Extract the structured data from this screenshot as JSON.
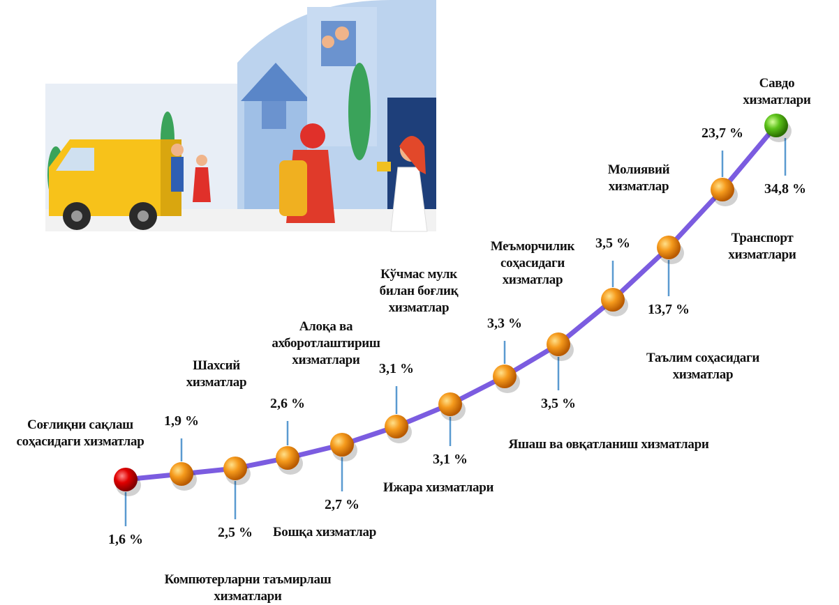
{
  "points": [
    {
      "name": "Соғлиқни сақлаш\nсоҳасидаги хизматлар",
      "value": "1,6 %"
    },
    {
      "name": "Шахсий\nхизматлар",
      "value": "1,9 %"
    },
    {
      "name": "Компютерларни таъмирлаш\nхизматлари",
      "value": "2,5 %"
    },
    {
      "name": "Алоқа ва\nахборотлаштириш\nхизматлари",
      "value": "2,6 %"
    },
    {
      "name": "Бошқа хизматлар",
      "value": "2,7 %"
    },
    {
      "name": "Кўчмас мулк\nбилан боғлиқ\nхизматлар",
      "value": "3,1 %"
    },
    {
      "name": "Ижара хизматлари",
      "value": "3,1 %"
    },
    {
      "name": "Меъморчилик\nсоҳасидаги\nхизматлар",
      "value": "3,3 %"
    },
    {
      "name": "Яшаш ва овқатланиш хизматлари",
      "value": "3,5 %"
    },
    {
      "name": "Таълим соҳасидаги хизматлар",
      "value": "3,5 %"
    },
    {
      "name": "Молиявий\nхизматлар",
      "value": "13,7 %"
    },
    {
      "name": "Транспорт\nхизматлари",
      "value": "23,7 %"
    },
    {
      "name": "Савдо хизматлари",
      "value": "34,8 %"
    }
  ]
}
